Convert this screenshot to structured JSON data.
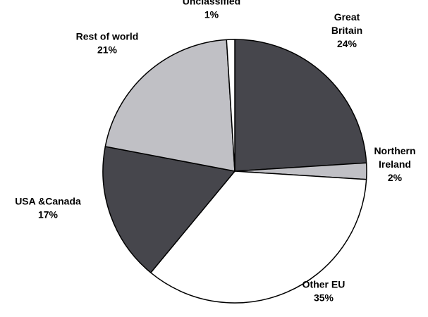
{
  "chart_data": {
    "type": "pie",
    "title": "",
    "start_angle_deg": 90,
    "direction": "clockwise",
    "legend": "none",
    "slices": [
      {
        "label_lines": [
          "Great",
          "Britain"
        ],
        "value": 24,
        "value_label": "24%",
        "color": "#46464c"
      },
      {
        "label_lines": [
          "Northern",
          "Ireland"
        ],
        "value": 2,
        "value_label": "2%",
        "color": "#c0c0c5"
      },
      {
        "label_lines": [
          "Other EU"
        ],
        "value": 35,
        "value_label": "35%",
        "color": "#ffffff"
      },
      {
        "label_lines": [
          "USA &Canada"
        ],
        "value": 17,
        "value_label": "17%",
        "color": "#46464c"
      },
      {
        "label_lines": [
          "Rest of world"
        ],
        "value": 21,
        "value_label": "21%",
        "color": "#c0c0c5"
      },
      {
        "label_lines": [
          "Unclassified"
        ],
        "value": 1,
        "value_label": "1%",
        "color": "#ffffff"
      }
    ]
  }
}
